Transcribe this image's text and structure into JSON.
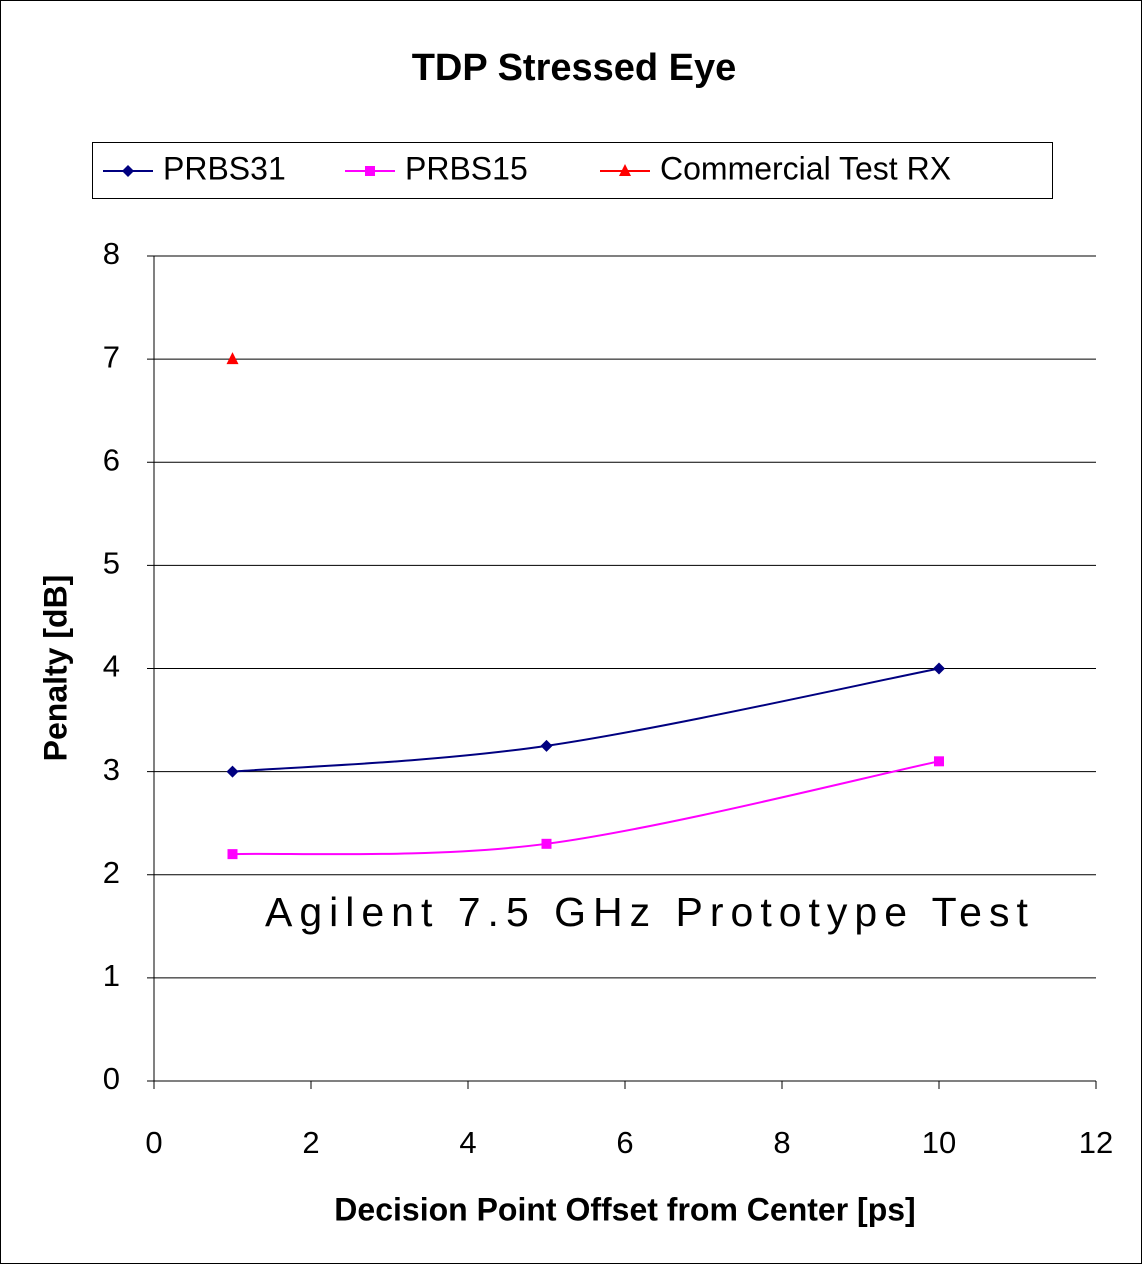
{
  "chart_data": {
    "type": "line",
    "title": "TDP Stressed Eye",
    "x_label": "Decision Point Offset from Center [ps]",
    "y_label": "Penalty [dB]",
    "annotation": "Agilent 7.5 GHz Prototype Test",
    "series": [
      {
        "name": "PRBS31",
        "color": "#000080",
        "marker": "diamond",
        "x": [
          1,
          5,
          10
        ],
        "values": [
          3,
          3.25,
          4
        ]
      },
      {
        "name": "PRBS15",
        "color": "#ff00ff",
        "marker": "square",
        "x": [
          1,
          5,
          10
        ],
        "values": [
          2.2,
          2.3,
          3.1
        ]
      },
      {
        "name": "Commercial Test RX",
        "color": "#ff0000",
        "marker": "triangle",
        "x": [
          1
        ],
        "values": [
          7
        ]
      }
    ],
    "xlim": [
      0,
      12
    ],
    "xticks": [
      0,
      2,
      4,
      6,
      8,
      10,
      12
    ],
    "ylim": [
      0,
      8
    ],
    "yticks": [
      0,
      1,
      2,
      3,
      4,
      5,
      6,
      7,
      8
    ],
    "grid": true,
    "legend": "top"
  }
}
